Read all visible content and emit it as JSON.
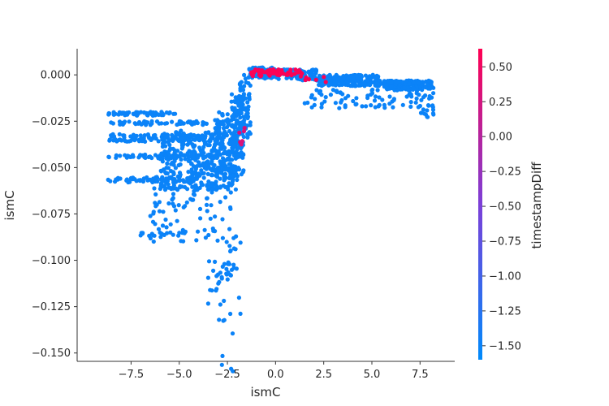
{
  "chart_data": {
    "type": "scatter",
    "title": "",
    "xlabel": "ismC",
    "ylabel": "ismC",
    "colorbar_label": "timestampDiff",
    "xlim": [
      -10.3,
      9.3
    ],
    "ylim": [
      -0.1545,
      0.0141
    ],
    "color_range": [
      -1.6,
      0.63
    ],
    "x_ticks": [
      "−7.5",
      "−5.0",
      "−2.5",
      "0.0",
      "2.5",
      "5.0",
      "7.5"
    ],
    "x_tick_values": [
      -7.5,
      -5.0,
      -2.5,
      0.0,
      2.5,
      5.0,
      7.5
    ],
    "y_ticks": [
      "0.000",
      "−0.025",
      "−0.050",
      "−0.075",
      "−0.100",
      "−0.125",
      "−0.150"
    ],
    "y_tick_values": [
      0.0,
      -0.025,
      -0.05,
      -0.075,
      -0.1,
      -0.125,
      -0.15
    ],
    "colorbar_ticks": [
      "0.50",
      "0.25",
      "0.00",
      "−0.25",
      "−0.50",
      "−0.75",
      "−1.00",
      "−1.25",
      "−1.50"
    ],
    "colorbar_tick_values": [
      0.5,
      0.25,
      0.0,
      -0.25,
      -0.5,
      -0.75,
      -1.0,
      -1.25,
      -1.5
    ],
    "colors": {
      "low": "#008afb",
      "mid": "#7c3fd8",
      "high": "#ff0052"
    },
    "clusters": [
      {
        "x_range": [
          -8.7,
          -5.2
        ],
        "y_range": [
          -0.022,
          -0.02
        ],
        "count": 60,
        "c": -1.5
      },
      {
        "x_range": [
          -8.7,
          -2.3
        ],
        "y_range": [
          -0.027,
          -0.025
        ],
        "count": 60,
        "c": -1.5
      },
      {
        "x_range": [
          -8.7,
          -2.8
        ],
        "y_range": [
          -0.036,
          -0.032
        ],
        "count": 110,
        "c": -1.5
      },
      {
        "x_range": [
          -8.7,
          -2.8
        ],
        "y_range": [
          -0.045,
          -0.043
        ],
        "count": 70,
        "c": -1.5
      },
      {
        "x_range": [
          -8.7,
          -4.0
        ],
        "y_range": [
          -0.058,
          -0.055
        ],
        "count": 70,
        "c": -1.5
      },
      {
        "x_range": [
          -6.0,
          -2.0
        ],
        "y_range": [
          -0.062,
          -0.03
        ],
        "count": 380,
        "c": -1.5
      },
      {
        "x_range": [
          -3.2,
          -1.6
        ],
        "y_range": [
          -0.055,
          -0.02
        ],
        "count": 120,
        "c": -1.5
      },
      {
        "x_range": [
          -2.3,
          -1.7
        ],
        "y_range": [
          -0.045,
          -0.01
        ],
        "count": 80,
        "c": -1.5
      },
      {
        "x_range": [
          -1.9,
          -1.3
        ],
        "y_range": [
          -0.035,
          0.0
        ],
        "count": 70,
        "c": -1.5
      },
      {
        "x_range": [
          -6.5,
          -3.5
        ],
        "y_range": [
          -0.09,
          -0.06
        ],
        "count": 60,
        "c": -1.5
      },
      {
        "x_range": [
          -7.2,
          -4.6
        ],
        "y_range": [
          -0.087,
          -0.085
        ],
        "count": 18,
        "c": -1.5
      },
      {
        "x_range": [
          -3.6,
          -2.0
        ],
        "y_range": [
          -0.11,
          -0.06
        ],
        "count": 40,
        "c": -1.5
      },
      {
        "x_range": [
          -3.6,
          -2.4
        ],
        "y_range": [
          -0.125,
          -0.1
        ],
        "count": 20,
        "c": -1.5
      },
      {
        "x_range": [
          -3.0,
          -2.2
        ],
        "y_range": [
          -0.16,
          -0.125
        ],
        "count": 8,
        "c": -1.5
      },
      {
        "x_range": [
          -2.4,
          -1.8
        ],
        "y_range": [
          -0.135,
          -0.09
        ],
        "count": 6,
        "c": -1.5
      },
      {
        "x_range": [
          -1.4,
          0.0
        ],
        "y_range": [
          -0.002,
          0.004
        ],
        "count": 110,
        "c": -1.5
      },
      {
        "x_range": [
          0.0,
          2.2
        ],
        "y_range": [
          -0.003,
          0.003
        ],
        "count": 110,
        "c": -1.5
      },
      {
        "x_range": [
          2.2,
          5.5
        ],
        "y_range": [
          -0.006,
          0.0
        ],
        "count": 170,
        "c": -1.5
      },
      {
        "x_range": [
          5.5,
          8.2
        ],
        "y_range": [
          -0.008,
          -0.003
        ],
        "count": 140,
        "c": -1.5
      },
      {
        "x_range": [
          1.5,
          8.2
        ],
        "y_range": [
          -0.018,
          -0.008
        ],
        "count": 90,
        "c": -1.5
      },
      {
        "x_range": [
          7.5,
          8.2
        ],
        "y_range": [
          -0.023,
          -0.015
        ],
        "count": 14,
        "c": -1.5
      },
      {
        "x_range": [
          -1.3,
          1.5
        ],
        "y_range": [
          -0.001,
          0.003
        ],
        "count": 55,
        "c": 0.6
      },
      {
        "x_range": [
          1.5,
          2.7
        ],
        "y_range": [
          -0.004,
          -0.001
        ],
        "count": 6,
        "c": 0.6
      },
      {
        "x_range": [
          -2.0,
          -1.6
        ],
        "y_range": [
          -0.038,
          -0.028
        ],
        "count": 7,
        "c": 0.3
      }
    ]
  }
}
